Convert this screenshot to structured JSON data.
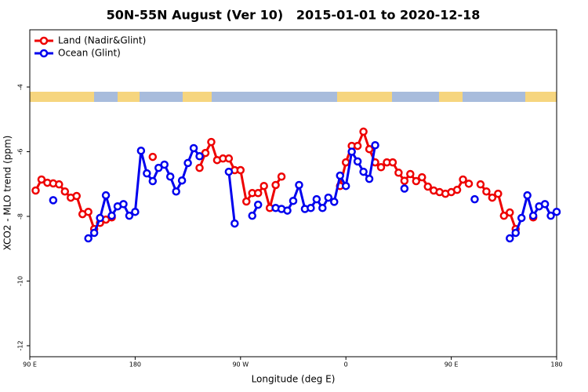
{
  "chart_data": {
    "type": "line",
    "title": "50N-55N August (Ver 10)   2015-01-01 to 2020-12-18",
    "x_label": "Longitude (deg E)",
    "y_label": "XCO2 - MLO trend (ppm)",
    "x": [
      90,
      95,
      100,
      105,
      110,
      115,
      120,
      125,
      130,
      135,
      140,
      145,
      150,
      155,
      160,
      165,
      170,
      175,
      180,
      185,
      190,
      195,
      200,
      205,
      210,
      215,
      220,
      225,
      230,
      235,
      240,
      245,
      250,
      255,
      260,
      265,
      270,
      275,
      280,
      285,
      290,
      295,
      300,
      305,
      310,
      315,
      320,
      325,
      330,
      335,
      340,
      345,
      350,
      355,
      360,
      365,
      370,
      375,
      380,
      385,
      390,
      395,
      400,
      405,
      410,
      415,
      420,
      425,
      430,
      435,
      440,
      445,
      450,
      455,
      460,
      465,
      470,
      475,
      480,
      485,
      490,
      495,
      500,
      505,
      510,
      515,
      520,
      525,
      530,
      535,
      540
    ],
    "series": [
      {
        "name": "Land (Nadir&Glint)",
        "color": "#ee0000",
        "values": [
          null,
          -7.2,
          -6.86,
          -6.96,
          -6.98,
          -7.01,
          -7.23,
          -7.42,
          -7.37,
          -7.93,
          -7.86,
          -8.39,
          -8.2,
          -8.1,
          -8.03,
          null,
          null,
          null,
          null,
          null,
          null,
          -6.16,
          null,
          null,
          null,
          null,
          null,
          null,
          null,
          -6.5,
          -6.04,
          -5.7,
          -6.26,
          -6.21,
          -6.21,
          -6.57,
          -6.57,
          -7.54,
          -7.28,
          -7.28,
          -7.06,
          -7.74,
          -7.03,
          -6.77,
          null,
          null,
          null,
          null,
          null,
          null,
          null,
          null,
          null,
          -7.06,
          -6.33,
          -5.82,
          -5.82,
          -5.38,
          -5.92,
          -6.33,
          -6.48,
          -6.33,
          -6.33,
          -6.65,
          -6.9,
          -6.69,
          -6.91,
          -6.79,
          -7.08,
          -7.2,
          -7.25,
          -7.3,
          -7.25,
          -7.18,
          -6.86,
          -6.99,
          null,
          -7.01,
          -7.23,
          -7.42,
          -7.3,
          -7.98,
          -7.88,
          -8.39,
          null,
          null,
          -8.03,
          null,
          null,
          null,
          null
        ]
      },
      {
        "name": "Ocean (Glint)",
        "color": "#0000ee",
        "values": [
          null,
          null,
          null,
          null,
          -7.5,
          null,
          null,
          null,
          null,
          null,
          -8.68,
          -8.51,
          -8.05,
          -7.35,
          -7.98,
          -7.69,
          -7.62,
          -7.98,
          -7.86,
          -5.97,
          -6.67,
          -6.91,
          -6.5,
          -6.4,
          -6.77,
          -7.23,
          -6.89,
          -6.35,
          -5.89,
          -6.14,
          null,
          null,
          null,
          null,
          -6.62,
          -8.22,
          null,
          null,
          -7.98,
          -7.64,
          null,
          null,
          -7.74,
          -7.77,
          -7.82,
          -7.52,
          -7.03,
          -7.77,
          -7.74,
          -7.47,
          -7.74,
          -7.42,
          -7.55,
          -6.74,
          -7.06,
          -6.0,
          -6.3,
          -6.62,
          -6.84,
          -5.8,
          null,
          null,
          null,
          null,
          -7.14,
          null,
          null,
          null,
          null,
          null,
          null,
          null,
          null,
          null,
          null,
          null,
          -7.47,
          null,
          null,
          null,
          null,
          null,
          -8.68,
          -8.51,
          -8.05,
          -7.35,
          -7.98,
          -7.69,
          -7.62,
          -7.98,
          -7.86
        ]
      }
    ],
    "xlim": [
      90,
      540
    ],
    "xticks": [
      {
        "value": 90,
        "label": "90 E"
      },
      180,
      {
        "value": 270,
        "label": "90 W"
      },
      {
        "value": 360,
        "label": "0"
      },
      {
        "value": 450,
        "label": "90 E"
      },
      {
        "value": 540,
        "label": "180"
      }
    ],
    "ylim": [
      -12.34,
      -2.23
    ],
    "yticks": [
      -4,
      -6,
      -8,
      -10,
      -12
    ],
    "legend": "top-left"
  }
}
